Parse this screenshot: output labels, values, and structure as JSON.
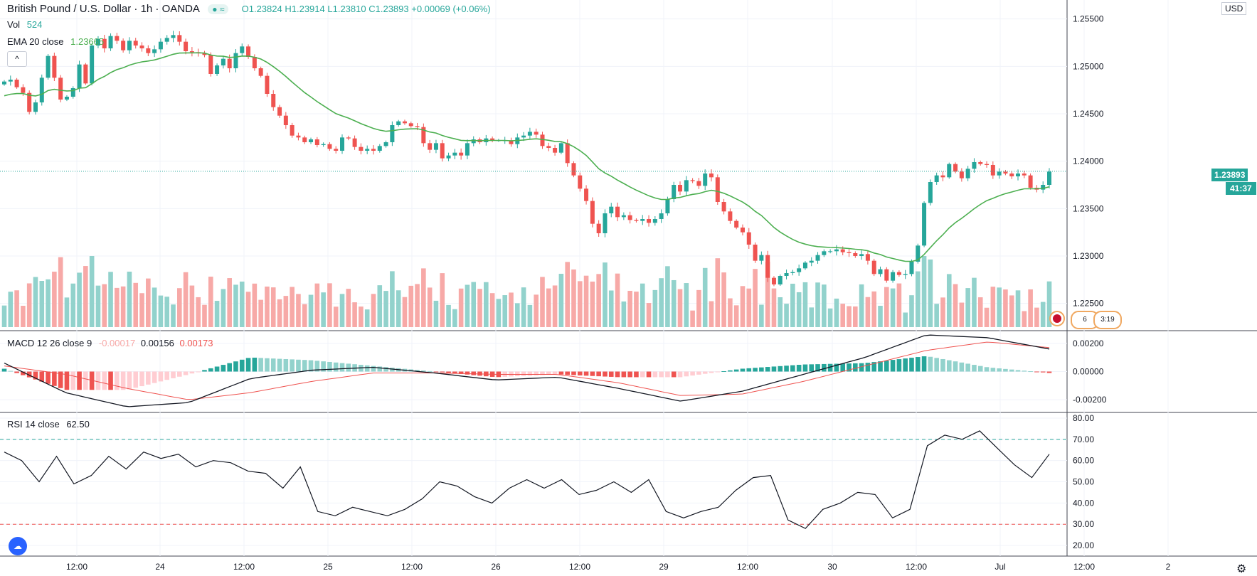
{
  "header": {
    "symbol": "British Pound / U.S. Dollar · 1h · OANDA",
    "ohlc": {
      "o": "O1.23824",
      "h": "H1.23914",
      "l": "L1.23810",
      "c": "C1.23893",
      "chg": "+0.00069 (+0.06%)"
    },
    "vol_label": "Vol",
    "vol_value": "524",
    "ema_label": "EMA 20 close",
    "ema_value": "1.23665",
    "macd_label": "MACD 12 26 close 9",
    "macd_v1": "-0.00017",
    "macd_v2": "0.00156",
    "macd_v3": "0.00173",
    "rsi_label": "RSI 14 close",
    "rsi_value": "62.50",
    "currency": "USD",
    "last_price": "1.23893",
    "countdown": "41:37",
    "collapse_icon": "chevron-up-icon",
    "event_badge": "6",
    "event_time": "3:19"
  },
  "colors": {
    "up": "#26a69a",
    "down": "#ef5350",
    "ema": "#4caf50",
    "volUp": "#92d2cc",
    "volDown": "#f7a9a7"
  },
  "chart_data": [
    {
      "type": "candlestick",
      "title": "British Pound / U.S. Dollar · 1h · OANDA",
      "ylim": [
        1.2225,
        1.2555
      ],
      "yticks": [
        "1.25500",
        "1.25000",
        "1.24500",
        "1.24000",
        "1.23500",
        "1.23000",
        "1.22500"
      ],
      "xticks": [
        "12:00",
        "24",
        "12:00",
        "25",
        "12:00",
        "26",
        "12:00",
        "29",
        "12:00",
        "30",
        "12:00",
        "Jul",
        "12:00",
        "2"
      ],
      "close": [
        1.2484,
        1.2486,
        1.2478,
        1.2472,
        1.2452,
        1.2462,
        1.2488,
        1.2511,
        1.2488,
        1.2465,
        1.2468,
        1.2477,
        1.2502,
        1.2482,
        1.2522,
        1.2529,
        1.2519,
        1.2532,
        1.2527,
        1.2517,
        1.2527,
        1.2522,
        1.2519,
        1.2514,
        1.2518,
        1.2526,
        1.253,
        1.2533,
        1.2526,
        1.2516,
        1.2515,
        1.2514,
        1.2512,
        1.2492,
        1.2501,
        1.2508,
        1.2498,
        1.2514,
        1.2521,
        1.251,
        1.2498,
        1.249,
        1.2471,
        1.2457,
        1.2448,
        1.2438,
        1.2427,
        1.2425,
        1.242,
        1.2423,
        1.2417,
        1.2418,
        1.2413,
        1.2411,
        1.2425,
        1.2424,
        1.2415,
        1.2411,
        1.2413,
        1.2411,
        1.2416,
        1.242,
        1.2438,
        1.2442,
        1.244,
        1.2437,
        1.2436,
        1.2419,
        1.2412,
        1.2419,
        1.2403,
        1.2406,
        1.2409,
        1.2406,
        1.2419,
        1.2423,
        1.242,
        1.2424,
        1.2422,
        1.2422,
        1.2422,
        1.2418,
        1.2425,
        1.2427,
        1.2431,
        1.2428,
        1.2416,
        1.2414,
        1.2409,
        1.2419,
        1.2398,
        1.2385,
        1.2371,
        1.2358,
        1.2334,
        1.2324,
        1.2345,
        1.2352,
        1.2341,
        1.2343,
        1.2338,
        1.2337,
        1.2339,
        1.2335,
        1.2339,
        1.2345,
        1.236,
        1.2375,
        1.2368,
        1.238,
        1.2379,
        1.2374,
        1.2387,
        1.2383,
        1.2357,
        1.2347,
        1.2337,
        1.233,
        1.2325,
        1.2312,
        1.2295,
        1.2301,
        1.2277,
        1.227,
        1.2279,
        1.2282,
        1.2283,
        1.2287,
        1.2293,
        1.2295,
        1.2301,
        1.2305,
        1.2305,
        1.2307,
        1.2304,
        1.2303,
        1.23,
        1.2302,
        1.2295,
        1.2281,
        1.2286,
        1.2274,
        1.2283,
        1.228,
        1.2281,
        1.2294,
        1.2311,
        1.2356,
        1.2378,
        1.2385,
        1.2383,
        1.2397,
        1.2389,
        1.2382,
        1.2392,
        1.2399,
        1.2397,
        1.2396,
        1.2385,
        1.2389,
        1.2387,
        1.2384,
        1.2387,
        1.2385,
        1.2372,
        1.237,
        1.2375,
        1.2389
      ],
      "notes": "close prices per hourly bar (approximate readings)"
    },
    {
      "type": "line",
      "title": "MACD 12 26 close 9",
      "ylim": [
        -0.0029,
        0.0029
      ],
      "yticks": [
        "0.00200",
        "0.00000",
        "-0.00200"
      ],
      "series": [
        {
          "name": "MACD",
          "values": [
            0.0006,
            -0.0015,
            -0.0025,
            -0.0022,
            -0.0005,
            0.0001,
            0.0003,
            -0.0001,
            -0.0006,
            -0.0004,
            -0.0012,
            -0.0021,
            -0.0014,
            -0.0002,
            0.001,
            0.0026,
            0.0024,
            0.0016
          ]
        },
        {
          "name": "Signal",
          "values": [
            0.0004,
            -0.0002,
            -0.0012,
            -0.002,
            -0.0015,
            -0.0007,
            -0.0001,
            -0.0001,
            -0.0002,
            -0.0002,
            -0.0008,
            -0.0017,
            -0.0016,
            -0.0007,
            0.0004,
            0.0015,
            0.0021,
            0.0017
          ]
        }
      ]
    },
    {
      "type": "line",
      "title": "RSI 14 close",
      "ylim": [
        15,
        82
      ],
      "yticks": [
        "80.00",
        "70.00",
        "60.00",
        "50.00",
        "40.00",
        "30.00",
        "20.00"
      ],
      "series": [
        {
          "name": "RSI",
          "values": [
            64,
            60,
            50,
            62,
            49,
            53,
            62,
            56,
            64,
            61,
            63,
            57,
            60,
            59,
            55,
            54,
            47,
            57,
            36,
            34,
            38,
            36,
            34,
            37,
            42,
            50,
            48,
            43,
            40,
            47,
            51,
            47,
            51,
            44,
            46,
            50,
            45,
            51,
            36,
            33,
            36,
            38,
            46,
            52,
            53,
            32,
            28,
            37,
            40,
            45,
            44,
            33,
            37,
            67,
            72,
            70,
            74,
            66,
            58,
            52,
            63
          ]
        }
      ]
    }
  ]
}
